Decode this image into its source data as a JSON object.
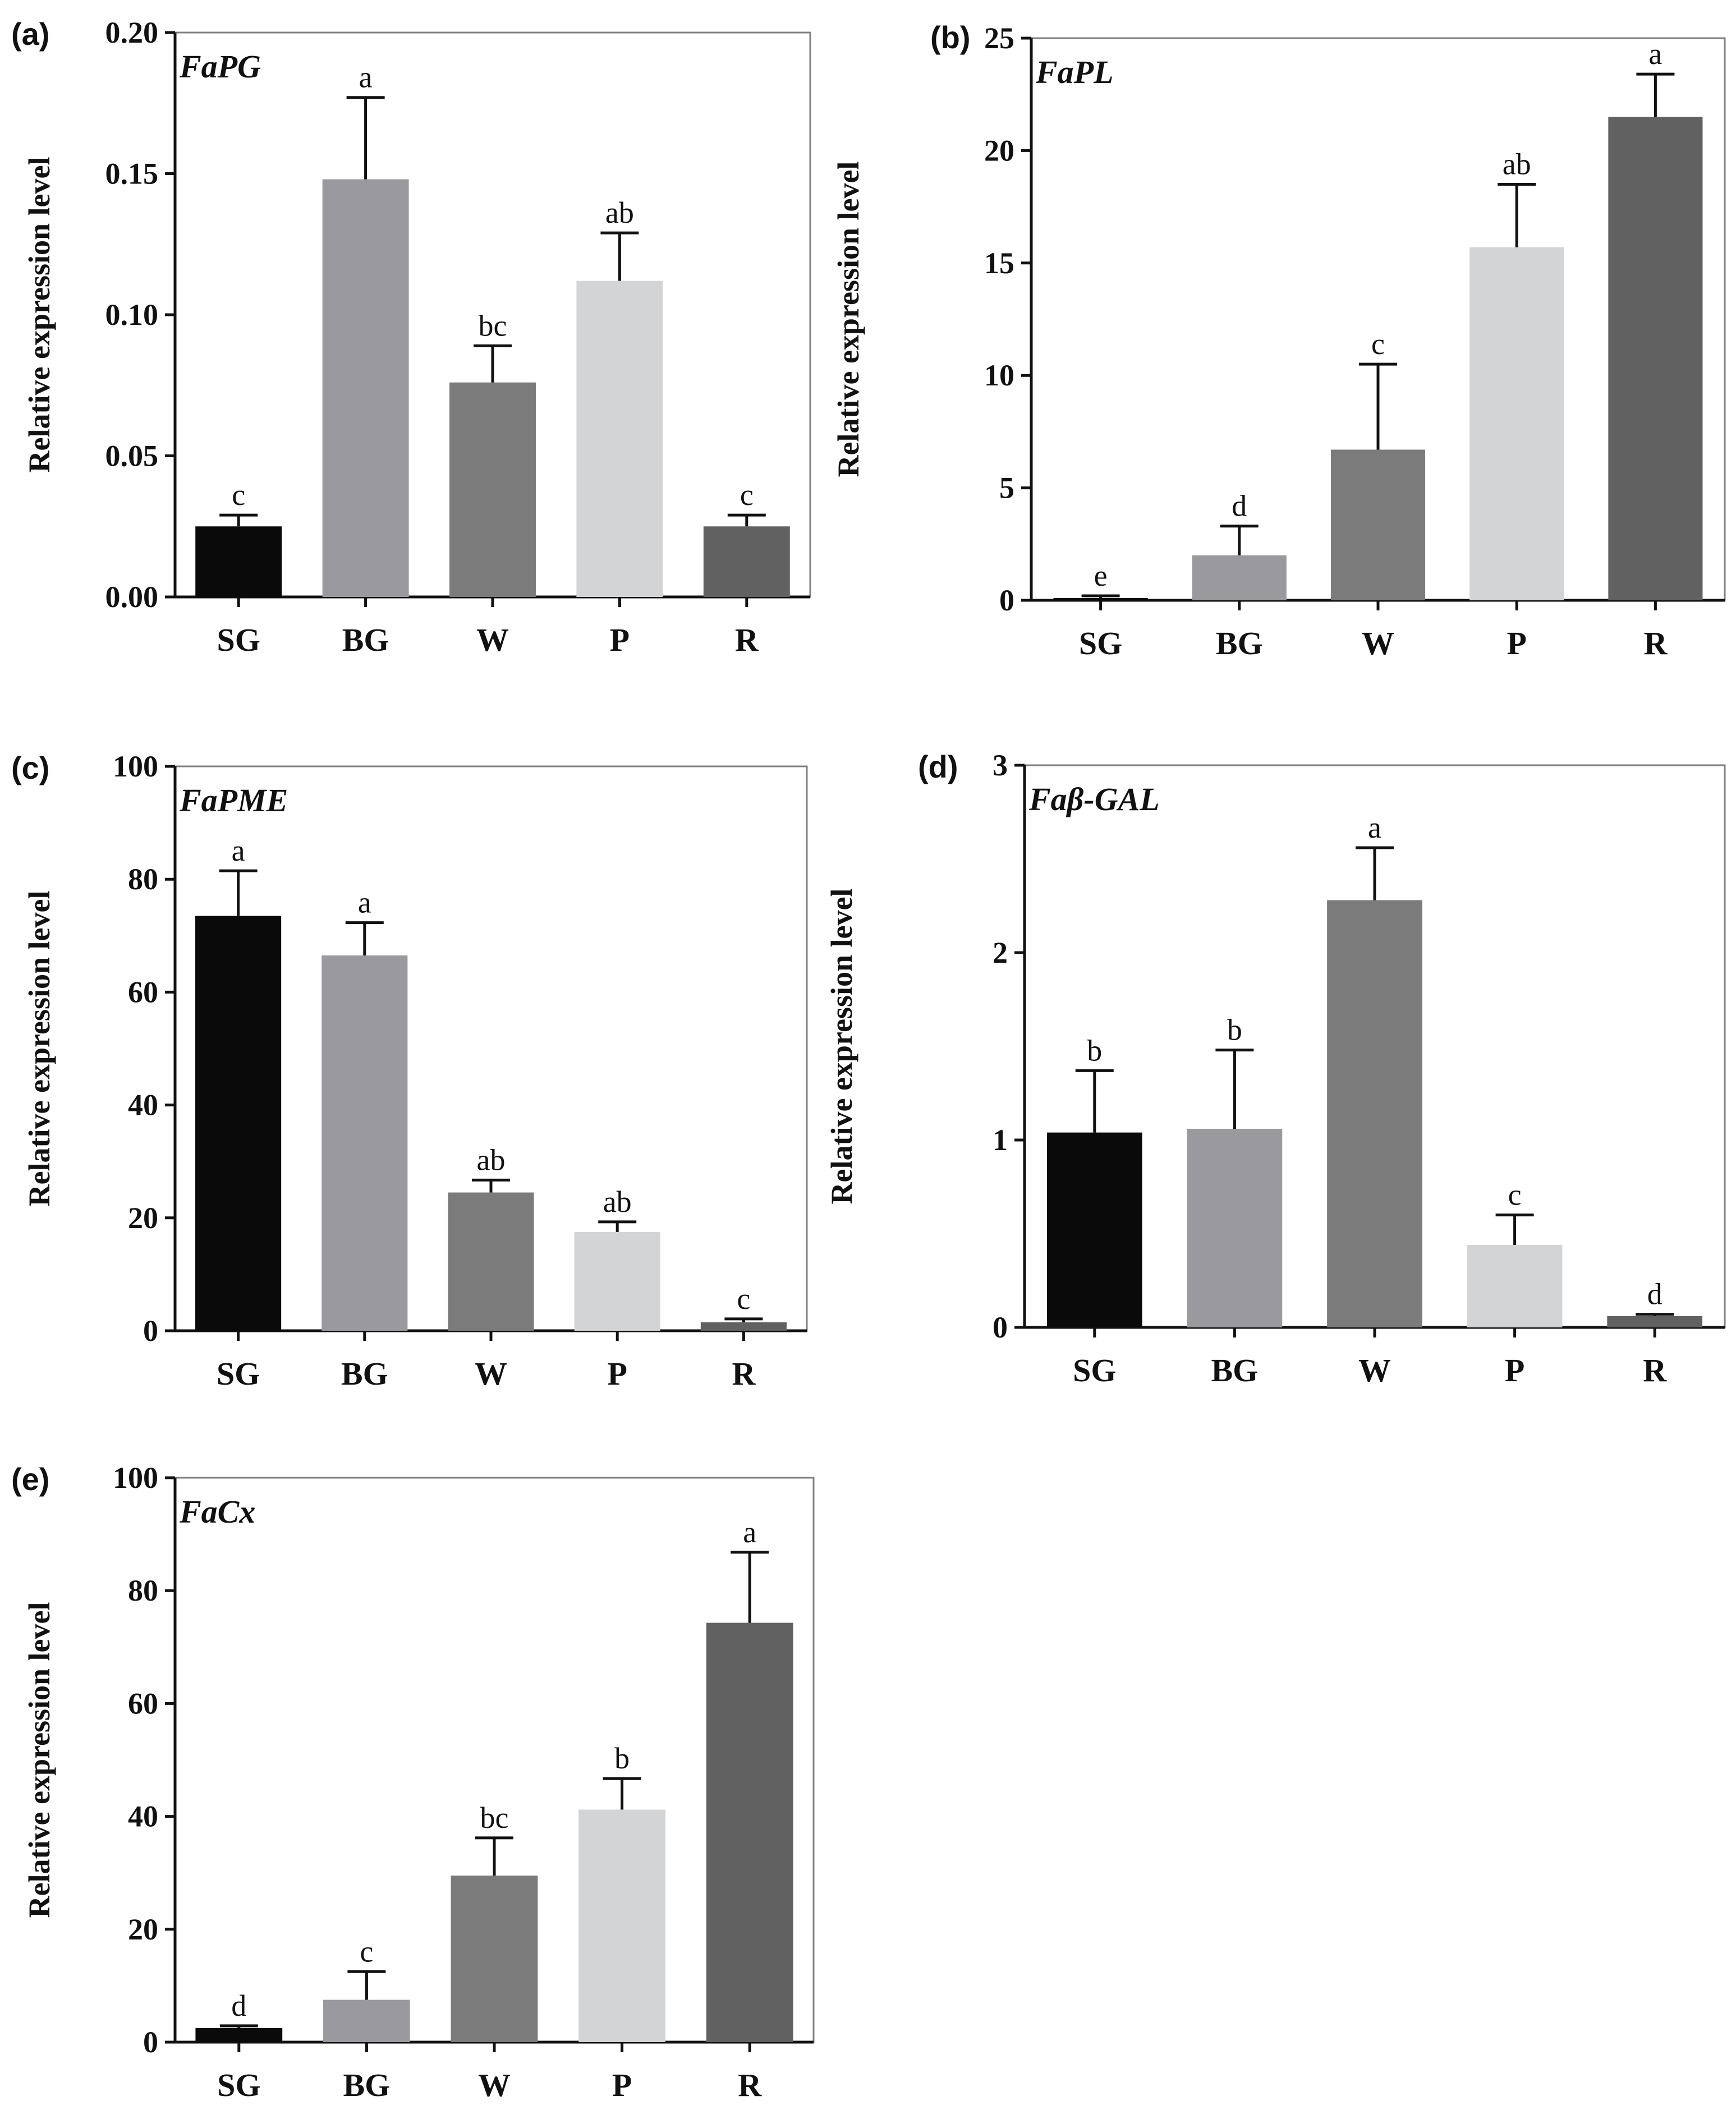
{
  "chart_data": [
    {
      "type": "bar",
      "panel": "(a)",
      "title": "FaPG",
      "ylabel": "Relative expression level",
      "xlabel": "",
      "categories": [
        "SG",
        "BG",
        "W",
        "P",
        "R"
      ],
      "values": [
        0.025,
        0.148,
        0.076,
        0.112,
        0.025
      ],
      "errors": [
        0.004,
        0.029,
        0.013,
        0.017,
        0.004
      ],
      "significance": [
        "c",
        "a",
        "bc",
        "ab",
        "c"
      ],
      "ylim": [
        0,
        0.2
      ],
      "yticks": [
        "0.00",
        "0.05",
        "0.10",
        "0.15",
        "0.20"
      ],
      "colors": [
        "#0a0a0a",
        "#9a9a9e",
        "#7b7b7b",
        "#d3d4d5",
        "#616161"
      ]
    },
    {
      "type": "bar",
      "panel": "(b)",
      "title": "FaPL",
      "ylabel": "Relative expression level",
      "xlabel": "",
      "categories": [
        "SG",
        "BG",
        "W",
        "P",
        "R"
      ],
      "values": [
        0.1,
        2.0,
        6.7,
        15.7,
        21.5
      ],
      "errors": [
        0.1,
        1.3,
        3.8,
        2.8,
        1.9
      ],
      "significance": [
        "e",
        "d",
        "c",
        "ab",
        "a"
      ],
      "ylim": [
        0,
        25
      ],
      "yticks": [
        "0",
        "5",
        "10",
        "15",
        "20",
        "25"
      ],
      "colors": [
        "#0a0a0a",
        "#9a9a9e",
        "#7b7b7b",
        "#d3d4d5",
        "#616161"
      ]
    },
    {
      "type": "bar",
      "panel": "(c)",
      "title": "FaPME",
      "ylabel": "Relative expression level",
      "xlabel": "",
      "categories": [
        "SG",
        "BG",
        "W",
        "P",
        "R"
      ],
      "values": [
        73.5,
        66.5,
        24.5,
        17.5,
        1.5
      ],
      "errors": [
        8.0,
        5.8,
        2.2,
        1.8,
        0.6
      ],
      "significance": [
        "a",
        "a",
        "ab",
        "ab",
        "c"
      ],
      "ylim": [
        0,
        100
      ],
      "yticks": [
        "0",
        "20",
        "40",
        "60",
        "80",
        "100"
      ],
      "colors": [
        "#0a0a0a",
        "#9a9a9e",
        "#7b7b7b",
        "#d3d4d5",
        "#616161"
      ]
    },
    {
      "type": "bar",
      "panel": "(d)",
      "title": "Faβ-GAL",
      "ylabel": "Relative expression level",
      "xlabel": "",
      "categories": [
        "SG",
        "BG",
        "W",
        "P",
        "R"
      ],
      "values": [
        1.04,
        1.06,
        2.28,
        0.44,
        0.06
      ],
      "errors": [
        0.33,
        0.42,
        0.28,
        0.16,
        0.01
      ],
      "significance": [
        "b",
        "b",
        "a",
        "c",
        "d"
      ],
      "ylim": [
        0,
        3
      ],
      "yticks": [
        "0",
        "1",
        "2",
        "3"
      ],
      "colors": [
        "#0a0a0a",
        "#9a9a9e",
        "#7b7b7b",
        "#d3d4d5",
        "#616161"
      ]
    },
    {
      "type": "bar",
      "panel": "(e)",
      "title": "FaCx",
      "ylabel": "Relative expression level",
      "xlabel": "",
      "categories": [
        "SG",
        "BG",
        "W",
        "P",
        "R"
      ],
      "values": [
        2.5,
        7.5,
        29.5,
        41.2,
        74.3
      ],
      "errors": [
        0.4,
        5.0,
        6.7,
        5.5,
        12.5
      ],
      "significance": [
        "d",
        "c",
        "bc",
        "b",
        "a"
      ],
      "ylim": [
        0,
        100
      ],
      "yticks": [
        "0",
        "20",
        "40",
        "60",
        "80",
        "100"
      ],
      "colors": [
        "#0a0a0a",
        "#9a9a9e",
        "#7b7b7b",
        "#d3d4d5",
        "#616161"
      ]
    }
  ]
}
